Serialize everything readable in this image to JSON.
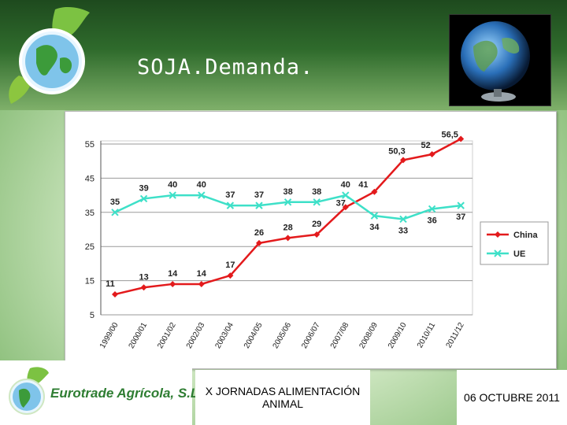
{
  "slide": {
    "title": "SOJA.Demanda.",
    "footer_center": "X JORNADAS ALIMENTACIÓN ANIMAL",
    "footer_date": "06 OCTUBRE 2011",
    "brand_name": "Eurotrade Agrícola, S.L.",
    "logo_icon": "globe-leaf-logo-icon",
    "photo_icon": "globe-photo"
  },
  "chart_data": {
    "type": "line",
    "title": "",
    "xlabel": "",
    "ylabel": "",
    "ylim": [
      5,
      55
    ],
    "y_ticks": [
      "5",
      "15",
      "25",
      "35",
      "45",
      "55"
    ],
    "grid": "horizontal",
    "legend_placement": "right",
    "categories": [
      "1999/00",
      "2000/01",
      "2001/02",
      "2002/03",
      "2003/04",
      "2004/05",
      "2005/06",
      "2006/07",
      "2007/08",
      "2008/09",
      "2009/10",
      "2010/11",
      "2011/12"
    ],
    "series": [
      {
        "name": "China",
        "color": "#e31a1c",
        "marker": "diamond",
        "values": [
          11,
          13,
          14,
          14,
          16.5,
          26,
          27.5,
          28.5,
          36.5,
          41,
          50.3,
          52,
          56.5
        ],
        "labels": [
          "11",
          "13",
          "14",
          "14",
          "17",
          "26",
          "28",
          "29",
          "37",
          "41",
          "50,3",
          "52",
          "56,5"
        ]
      },
      {
        "name": "UE",
        "color": "#3ee0c8",
        "marker": "x",
        "values": [
          35,
          39,
          40,
          40,
          37,
          37,
          38,
          38,
          40,
          34,
          33,
          36,
          37
        ],
        "labels": [
          "35",
          "39",
          "40",
          "40",
          "37",
          "37",
          "38",
          "38",
          "40",
          "34",
          "33",
          "36",
          "37"
        ]
      }
    ]
  }
}
